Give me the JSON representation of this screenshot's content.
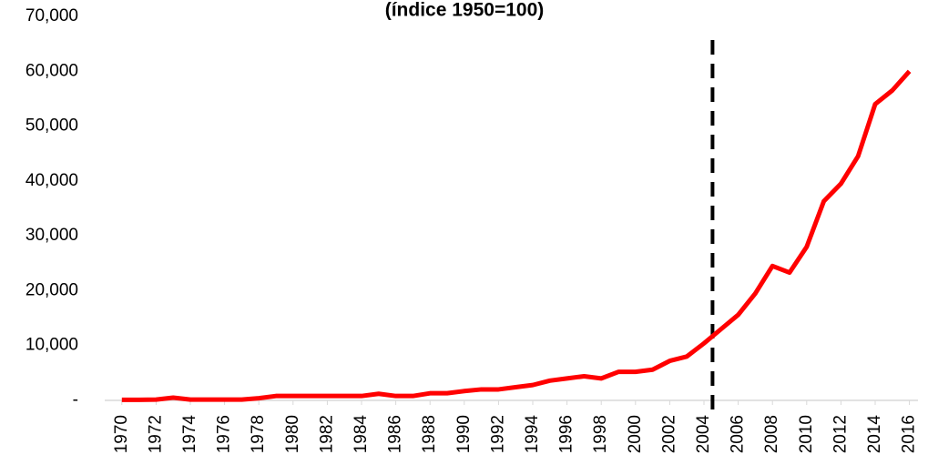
{
  "chart_data": {
    "type": "line",
    "title": "(índice 1950=100)",
    "x": [
      1970,
      1971,
      1972,
      1973,
      1974,
      1975,
      1976,
      1977,
      1978,
      1979,
      1980,
      1981,
      1982,
      1983,
      1984,
      1985,
      1986,
      1987,
      1988,
      1989,
      1990,
      1991,
      1992,
      1993,
      1994,
      1995,
      1996,
      1997,
      1998,
      1999,
      2000,
      2001,
      2002,
      2003,
      2004,
      2005,
      2006,
      2007,
      2008,
      2009,
      2010,
      2011,
      2012,
      2013,
      2014,
      2015,
      2016
    ],
    "series": [
      {
        "color": "#ff0000",
        "values": [
          100,
          100,
          150,
          500,
          150,
          150,
          150,
          150,
          400,
          800,
          800,
          800,
          800,
          800,
          800,
          1200,
          800,
          800,
          1300,
          1300,
          1700,
          2000,
          2000,
          2400,
          2800,
          3600,
          4000,
          4400,
          4000,
          5200,
          5200,
          5600,
          7200,
          8000,
          10400,
          13000,
          15600,
          19500,
          24500,
          23300,
          28000,
          36300,
          39500,
          44500,
          54000,
          56500,
          60000
        ]
      }
    ],
    "xlim": [
      1969,
      2016.5
    ],
    "xticks": [
      1970,
      1972,
      1974,
      1976,
      1978,
      1980,
      1982,
      1984,
      1986,
      1988,
      1990,
      1992,
      1994,
      1996,
      1998,
      2000,
      2002,
      2004,
      2006,
      2008,
      2010,
      2012,
      2014,
      2016
    ],
    "ylim": [
      0,
      70000
    ],
    "yticks": [
      {
        "value": 0,
        "label": "-"
      },
      {
        "value": 10000,
        "label": "10,000"
      },
      {
        "value": 20000,
        "label": "20,000"
      },
      {
        "value": 30000,
        "label": "30,000"
      },
      {
        "value": 40000,
        "label": "40,000"
      },
      {
        "value": 50000,
        "label": "50,000"
      },
      {
        "value": 60000,
        "label": "60,000"
      },
      {
        "value": 70000,
        "label": "70,000"
      }
    ],
    "vline": {
      "x": 2004.5,
      "color": "#000000"
    },
    "grid": false
  }
}
